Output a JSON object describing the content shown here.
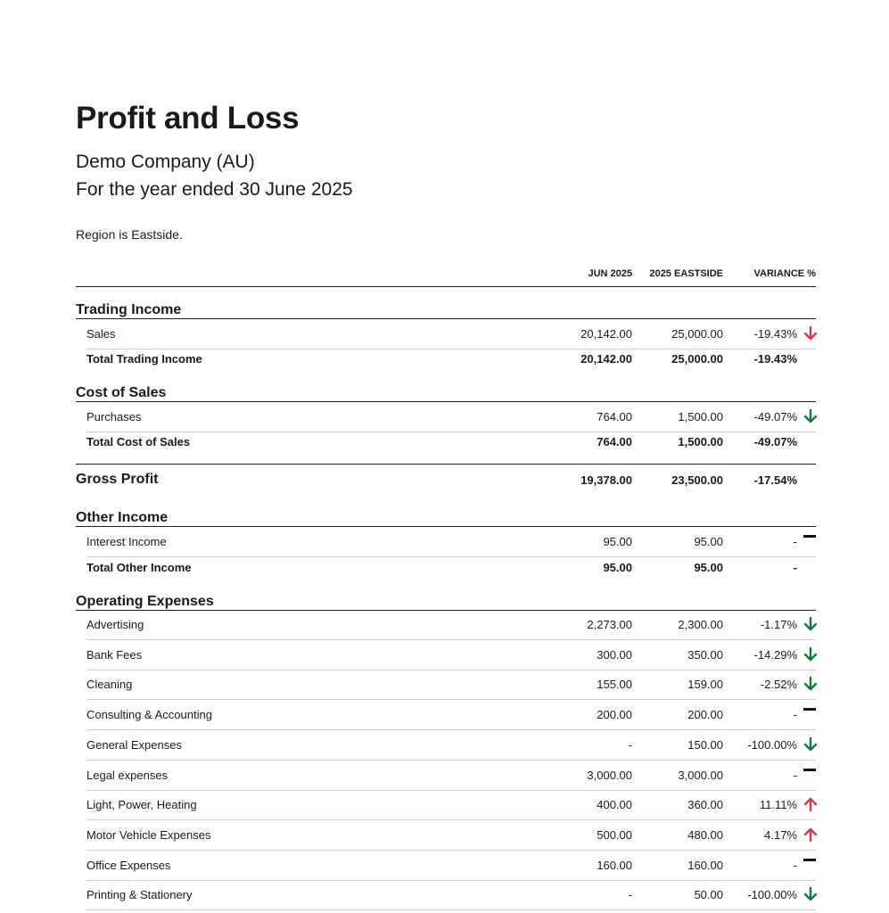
{
  "report": {
    "title": "Profit and Loss",
    "company": "Demo Company (AU)",
    "period": "For the year ended 30 June 2025",
    "filter": "Region is Eastside."
  },
  "columns": [
    "JUN 2025",
    "2025 EASTSIDE",
    "VARIANCE %"
  ],
  "colors": {
    "down": "#0f7b3a",
    "up": "#d63a4a",
    "down_bad": "#d63a4a"
  },
  "trading_income": {
    "title": "Trading Income",
    "rows": [
      {
        "label": "Sales",
        "v1": "20,142.00",
        "v2": "25,000.00",
        "var": "-19.43%",
        "indicator": "down-red"
      }
    ],
    "total": {
      "label": "Total Trading Income",
      "v1": "20,142.00",
      "v2": "25,000.00",
      "var": "-19.43%"
    }
  },
  "cost_of_sales": {
    "title": "Cost of Sales",
    "rows": [
      {
        "label": "Purchases",
        "v1": "764.00",
        "v2": "1,500.00",
        "var": "-49.07%",
        "indicator": "down-green"
      }
    ],
    "total": {
      "label": "Total Cost of Sales",
      "v1": "764.00",
      "v2": "1,500.00",
      "var": "-49.07%"
    }
  },
  "gross_profit": {
    "label": "Gross Profit",
    "v1": "19,378.00",
    "v2": "23,500.00",
    "var": "-17.54%"
  },
  "other_income": {
    "title": "Other Income",
    "rows": [
      {
        "label": "Interest Income",
        "v1": "95.00",
        "v2": "95.00",
        "var": "-",
        "indicator": "flat"
      }
    ],
    "total": {
      "label": "Total Other Income",
      "v1": "95.00",
      "v2": "95.00",
      "var": "-"
    }
  },
  "operating_expenses": {
    "title": "Operating Expenses",
    "rows": [
      {
        "label": "Advertising",
        "v1": "2,273.00",
        "v2": "2,300.00",
        "var": "-1.17%",
        "indicator": "down-green"
      },
      {
        "label": "Bank Fees",
        "v1": "300.00",
        "v2": "350.00",
        "var": "-14.29%",
        "indicator": "down-green"
      },
      {
        "label": "Cleaning",
        "v1": "155.00",
        "v2": "159.00",
        "var": "-2.52%",
        "indicator": "down-green"
      },
      {
        "label": "Consulting & Accounting",
        "v1": "200.00",
        "v2": "200.00",
        "var": "-",
        "indicator": "flat"
      },
      {
        "label": "General Expenses",
        "v1": "-",
        "v2": "150.00",
        "var": "-100.00%",
        "indicator": "down-green"
      },
      {
        "label": "Legal expenses",
        "v1": "3,000.00",
        "v2": "3,000.00",
        "var": "-",
        "indicator": "flat"
      },
      {
        "label": "Light, Power, Heating",
        "v1": "400.00",
        "v2": "360.00",
        "var": "11.11%",
        "indicator": "up-red"
      },
      {
        "label": "Motor Vehicle Expenses",
        "v1": "500.00",
        "v2": "480.00",
        "var": "4.17%",
        "indicator": "up-red"
      },
      {
        "label": "Office Expenses",
        "v1": "160.00",
        "v2": "160.00",
        "var": "-",
        "indicator": "flat"
      },
      {
        "label": "Printing & Stationery",
        "v1": "-",
        "v2": "50.00",
        "var": "-100.00%",
        "indicator": "down-green"
      }
    ]
  }
}
